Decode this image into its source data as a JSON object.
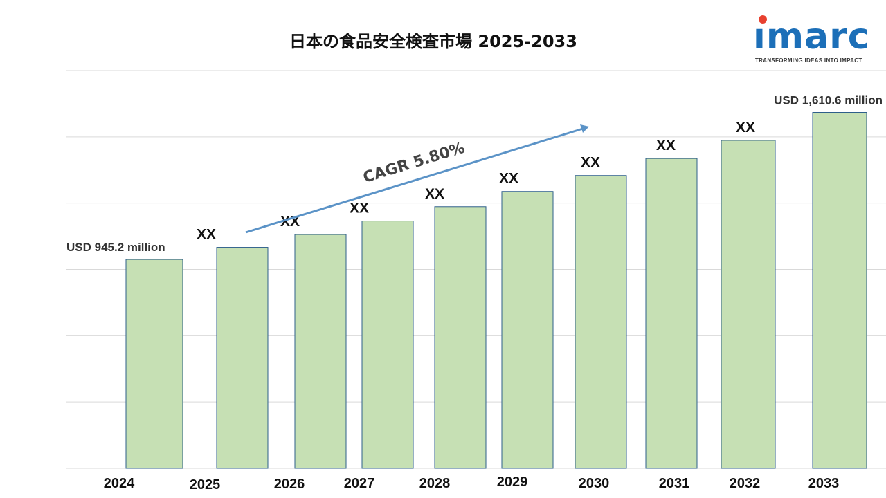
{
  "title": "日本の食品安全検査市場  2025-2033",
  "logo": {
    "word": "ımarc",
    "tagline": "TRANSFORMING IDEAS INTO IMPACT"
  },
  "cagr_label": "CAGR 5.80%",
  "colors": {
    "bar_fill": "#c6e0b4",
    "bar_stroke": "#2e5f8a",
    "arrow": "#5b93c7",
    "grid": "#d9d9d9",
    "logo_blue": "#1c6fb8",
    "logo_dot": "#e8402f"
  },
  "chart_data": {
    "type": "bar",
    "title": "日本の食品安全検査市場  2025-2033",
    "categories": [
      "2024",
      "2025",
      "2026",
      "2027",
      "2028",
      "2029",
      "2030",
      "2031",
      "2032",
      "2033"
    ],
    "values": [
      945.2,
      1000,
      1058,
      1119,
      1184,
      1253,
      1325,
      1402,
      1484,
      1610.6
    ],
    "value_labels": [
      "USD 945.2 million",
      "XX",
      "XX",
      "XX",
      "XX",
      "XX",
      "XX",
      "XX",
      "XX",
      "USD 1,610.6 million"
    ],
    "ylim": [
      0,
      1800
    ],
    "grid": true,
    "y_tick_labels_shown": false,
    "legend": "none"
  }
}
